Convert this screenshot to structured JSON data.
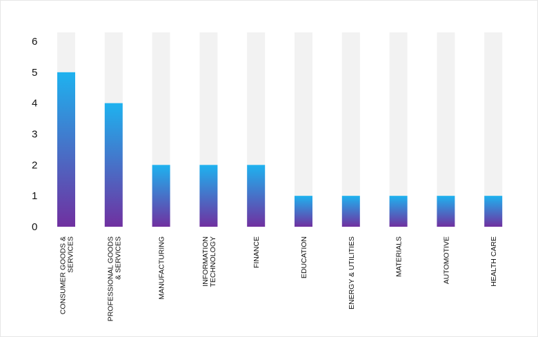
{
  "chart_data": {
    "type": "bar",
    "categories": [
      "CONSUMER GOODS & SERVICES",
      "PROFESSIONAL GOODS & SERVICES",
      "MANUFACTURING",
      "INFORMATION TECHNOLOGY",
      "FINANCE",
      "EDUCATION",
      "ENERGY & UTILITIES",
      "MATERIALS",
      "AUTOMOTIVE",
      "HEALTH CARE"
    ],
    "category_label_lines": [
      [
        "CONSUMER GOODS &",
        "SERVICES"
      ],
      [
        "PROFESSIONAL GOODS",
        "& SERVICES"
      ],
      [
        "MANUFACTURING"
      ],
      [
        "INFORMATION",
        "TECHNOLOGY"
      ],
      [
        "FINANCE"
      ],
      [
        "EDUCATION"
      ],
      [
        "ENERGY & UTILITIES"
      ],
      [
        "MATERIALS"
      ],
      [
        "AUTOMOTIVE"
      ],
      [
        "HEALTH CARE"
      ]
    ],
    "values": [
      5,
      4,
      2,
      2,
      2,
      1,
      1,
      1,
      1,
      1
    ],
    "ylim": [
      0,
      6
    ],
    "yticks": [
      "0",
      "1",
      "2",
      "3",
      "4",
      "5",
      "6"
    ],
    "title": "",
    "xlabel": "",
    "ylabel": "",
    "grid": false,
    "legend": "none",
    "colors": {
      "bar_top": "#1eb2ef",
      "bar_bottom": "#7030a0",
      "bar_background": "#f2f2f2"
    }
  }
}
